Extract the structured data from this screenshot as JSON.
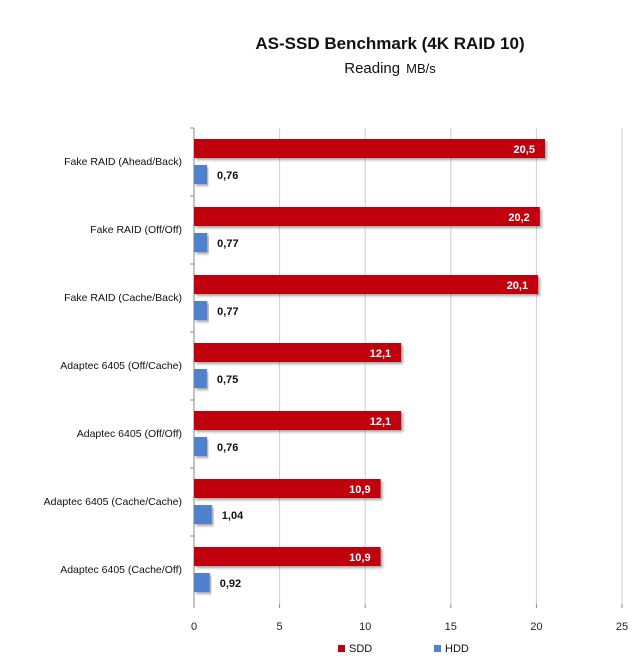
{
  "chart_data": {
    "type": "bar",
    "orientation": "horizontal",
    "title": "AS-SSD Benchmark (4K RAID 10)",
    "subtitle": "Reading",
    "unit": "MB/s",
    "categories": [
      "Fake RAID (Ahead/Back)",
      "Fake RAID (Off/Off)",
      "Fake RAID (Cache/Back)",
      "Adaptec 6405  (Off/Cache)",
      "Adaptec 6405  (Off/Off)",
      "Adaptec 6405  (Cache/Cache)",
      "Adaptec 6405  (Cache/Off)"
    ],
    "series": [
      {
        "name": "SDD",
        "color": "#c0000b",
        "values": [
          20.5,
          20.2,
          20.1,
          12.1,
          12.1,
          10.9,
          10.9
        ],
        "labels": [
          "20,5",
          "20,2",
          "20,1",
          "12,1",
          "12,1",
          "10,9",
          "10,9"
        ]
      },
      {
        "name": "HDD",
        "color": "#4f81cf",
        "values": [
          0.76,
          0.77,
          0.77,
          0.75,
          0.76,
          1.04,
          0.92
        ],
        "labels": [
          "0,76",
          "0,77",
          "0,77",
          "0,75",
          "0,76",
          "1,04",
          "0,92"
        ]
      }
    ],
    "xlim": [
      0,
      25
    ],
    "xticks": [
      0,
      5,
      10,
      15,
      20,
      25
    ],
    "grid": true,
    "legend_position": "bottom"
  }
}
